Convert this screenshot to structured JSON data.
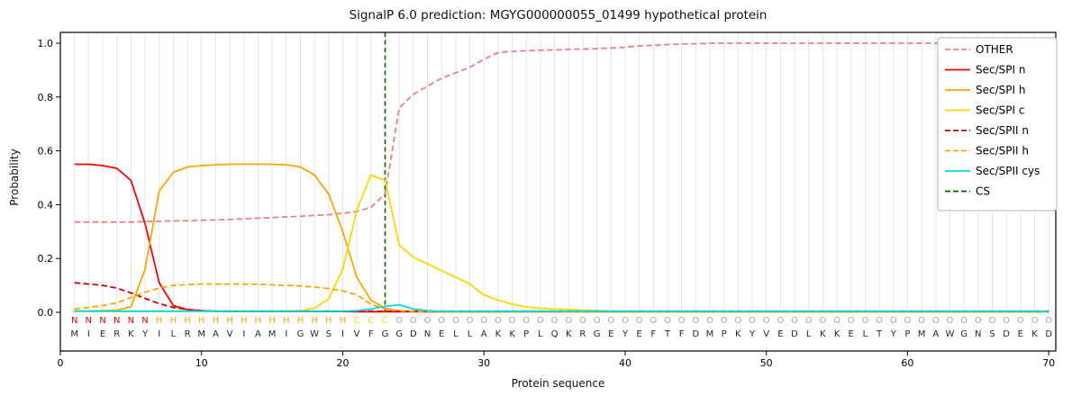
{
  "chart_data": {
    "type": "line",
    "title": "SignalP 6.0 prediction: MGYG000000055_01499 hypothetical protein",
    "xlabel": "Protein sequence",
    "ylabel": "Probability",
    "xlim": [
      0,
      70.5
    ],
    "ylim": [
      0,
      1.05
    ],
    "xticks": [
      0,
      10,
      20,
      30,
      40,
      50,
      60,
      70
    ],
    "yticks": [
      0,
      0.2,
      0.4,
      0.6,
      0.8,
      1
    ],
    "grid": "vertical-per-residue",
    "legend_position": "upper right",
    "sequence": "MIERKYILRMAVIAMIGWSIVFGGDNELLAKKPLQKRGEYEFTFDMPKYVEDLKKELTYPMAWGNSDEKD",
    "region_labels": "NNNNNNHHHHHHHHHHHHHHCCCOOOOOOOOOOOOOOOOOOOOOOOOOOOOOOOOOOOOOOOOOOOOOOO",
    "region_colors": {
      "N": "#ff0000",
      "H": "#ffa500",
      "C": "#ffd700",
      "O": "#a6a6a6"
    },
    "cs": {
      "label": "CS",
      "x": 23,
      "color": "#006400",
      "style": "dashed"
    },
    "series": [
      {
        "name": "OTHER",
        "color": "#f08080",
        "style": "dashed",
        "values": [
          0.335,
          0.335,
          0.335,
          0.335,
          0.335,
          0.337,
          0.338,
          0.34,
          0.34,
          0.342,
          0.343,
          0.345,
          0.347,
          0.35,
          0.352,
          0.355,
          0.357,
          0.36,
          0.363,
          0.368,
          0.375,
          0.39,
          0.44,
          0.76,
          0.81,
          0.84,
          0.87,
          0.89,
          0.91,
          0.94,
          0.965,
          0.97,
          0.972,
          0.974,
          0.975,
          0.977,
          0.978,
          0.98,
          0.982,
          0.985,
          0.99,
          0.992,
          0.995,
          0.997,
          0.998,
          1.0,
          1.0,
          1.0,
          1.0,
          1.0,
          1.0,
          1.0,
          1.0,
          1.0,
          1.0,
          1.0,
          1.0,
          1.0,
          1.0,
          1.0,
          1.0,
          1.0,
          1.0,
          1.0,
          1.0,
          1.0,
          1.0,
          1.0,
          1.0,
          1.0
        ]
      },
      {
        "name": "Sec/SPI n",
        "color": "#ff0000",
        "style": "solid",
        "values": [
          0.55,
          0.55,
          0.545,
          0.535,
          0.49,
          0.33,
          0.11,
          0.025,
          0.01,
          0.006,
          0.004,
          0.003,
          0.003,
          0.003,
          0.003,
          0.003,
          0.003,
          0.003,
          0.003,
          0.003,
          0.002,
          0.002,
          0.002,
          0.002,
          0.002,
          0.002,
          0.002,
          0.002,
          0.002,
          0.002,
          0.002,
          0.002,
          0.002,
          0.002,
          0.002,
          0.002,
          0.002,
          0.002,
          0.002,
          0.002,
          0.002,
          0.002,
          0.002,
          0.002,
          0.002,
          0.002,
          0.002,
          0.002,
          0.002,
          0.002,
          0.002,
          0.002,
          0.002,
          0.002,
          0.002,
          0.002,
          0.002,
          0.002,
          0.002,
          0.002,
          0.002,
          0.002,
          0.002,
          0.002,
          0.002,
          0.002,
          0.002,
          0.002,
          0.002,
          0.002
        ]
      },
      {
        "name": "Sec/SPI h",
        "color": "#ffa500",
        "style": "solid",
        "values": [
          0.005,
          0.005,
          0.006,
          0.008,
          0.02,
          0.16,
          0.45,
          0.52,
          0.54,
          0.545,
          0.548,
          0.55,
          0.55,
          0.55,
          0.55,
          0.548,
          0.54,
          0.51,
          0.44,
          0.3,
          0.13,
          0.045,
          0.015,
          0.005,
          0.003,
          0.002,
          0.002,
          0.002,
          0.002,
          0.002,
          0.002,
          0.002,
          0.002,
          0.002,
          0.002,
          0.002,
          0.002,
          0.002,
          0.002,
          0.002,
          0.002,
          0.002,
          0.002,
          0.002,
          0.002,
          0.002,
          0.002,
          0.002,
          0.002,
          0.002,
          0.002,
          0.002,
          0.002,
          0.002,
          0.002,
          0.002,
          0.002,
          0.002,
          0.002,
          0.002,
          0.002,
          0.002,
          0.002,
          0.002,
          0.002,
          0.002,
          0.002,
          0.002,
          0.002,
          0.002
        ]
      },
      {
        "name": "Sec/SPI c",
        "color": "#ffd700",
        "style": "solid",
        "values": [
          0.004,
          0.004,
          0.004,
          0.004,
          0.004,
          0.004,
          0.004,
          0.004,
          0.004,
          0.004,
          0.004,
          0.004,
          0.004,
          0.004,
          0.004,
          0.004,
          0.006,
          0.015,
          0.05,
          0.16,
          0.38,
          0.51,
          0.49,
          0.25,
          0.205,
          0.18,
          0.155,
          0.13,
          0.105,
          0.065,
          0.045,
          0.03,
          0.02,
          0.015,
          0.012,
          0.01,
          0.008,
          0.006,
          0.004,
          0.004,
          0.004,
          0.004,
          0.004,
          0.004,
          0.004,
          0.004,
          0.004,
          0.004,
          0.004,
          0.004,
          0.004,
          0.004,
          0.004,
          0.004,
          0.004,
          0.004,
          0.004,
          0.004,
          0.004,
          0.004,
          0.004,
          0.004,
          0.004,
          0.004,
          0.004,
          0.004,
          0.004,
          0.004,
          0.004,
          0.004
        ]
      },
      {
        "name": "Sec/SPII n",
        "color": "#d40000",
        "style": "dashed",
        "values": [
          0.11,
          0.105,
          0.1,
          0.09,
          0.072,
          0.052,
          0.032,
          0.018,
          0.01,
          0.006,
          0.004,
          0.004,
          0.004,
          0.004,
          0.004,
          0.004,
          0.004,
          0.004,
          0.004,
          0.004,
          0.004,
          0.004,
          0.004,
          0.004,
          0.004,
          0.004,
          0.004,
          0.004,
          0.004,
          0.004,
          0.004,
          0.004,
          0.004,
          0.004,
          0.004,
          0.004,
          0.004,
          0.004,
          0.004,
          0.004,
          0.004,
          0.004,
          0.004,
          0.004,
          0.004,
          0.004,
          0.004,
          0.004,
          0.004,
          0.004,
          0.004,
          0.004,
          0.004,
          0.004,
          0.004,
          0.004,
          0.004,
          0.004,
          0.004,
          0.004,
          0.004,
          0.004,
          0.004,
          0.004,
          0.004,
          0.004,
          0.004,
          0.004,
          0.004,
          0.004
        ]
      },
      {
        "name": "Sec/SPII h",
        "color": "#ffa500",
        "style": "dashed",
        "values": [
          0.012,
          0.018,
          0.025,
          0.035,
          0.055,
          0.075,
          0.09,
          0.1,
          0.103,
          0.105,
          0.105,
          0.105,
          0.105,
          0.104,
          0.102,
          0.1,
          0.098,
          0.094,
          0.088,
          0.08,
          0.065,
          0.03,
          0.012,
          0.006,
          0.004,
          0.003,
          0.003,
          0.003,
          0.003,
          0.003,
          0.003,
          0.003,
          0.003,
          0.003,
          0.003,
          0.003,
          0.003,
          0.003,
          0.003,
          0.003,
          0.003,
          0.003,
          0.003,
          0.003,
          0.003,
          0.003,
          0.003,
          0.003,
          0.003,
          0.003,
          0.003,
          0.003,
          0.003,
          0.003,
          0.003,
          0.003,
          0.003,
          0.003,
          0.003,
          0.003,
          0.003,
          0.003,
          0.003,
          0.003,
          0.003,
          0.003,
          0.003,
          0.003,
          0.003,
          0.003
        ]
      },
      {
        "name": "Sec/SPII cys",
        "color": "#00dcdc",
        "style": "solid",
        "values": [
          0.004,
          0.004,
          0.004,
          0.004,
          0.004,
          0.004,
          0.004,
          0.004,
          0.004,
          0.004,
          0.004,
          0.004,
          0.004,
          0.004,
          0.004,
          0.004,
          0.004,
          0.004,
          0.004,
          0.004,
          0.006,
          0.012,
          0.022,
          0.028,
          0.012,
          0.006,
          0.004,
          0.004,
          0.004,
          0.004,
          0.004,
          0.004,
          0.004,
          0.004,
          0.004,
          0.004,
          0.004,
          0.004,
          0.004,
          0.004,
          0.004,
          0.004,
          0.004,
          0.004,
          0.004,
          0.004,
          0.004,
          0.004,
          0.004,
          0.004,
          0.004,
          0.004,
          0.004,
          0.004,
          0.004,
          0.004,
          0.004,
          0.004,
          0.004,
          0.004,
          0.004,
          0.004,
          0.004,
          0.004,
          0.004,
          0.004,
          0.004,
          0.004,
          0.004,
          0.004
        ]
      }
    ]
  }
}
